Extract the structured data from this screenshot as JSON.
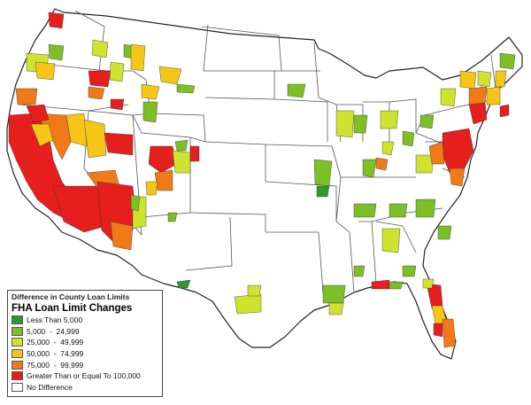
{
  "legend": {
    "heading": "Difference in County Loan Limits",
    "title": "FHA Loan Limit Changes",
    "items": [
      {
        "label": "Less Than 5,000",
        "color": "#2e9a2e"
      },
      {
        "label": "5,000  -  24,999",
        "color": "#7dbf27"
      },
      {
        "label": "25,000  -  49,999",
        "color": "#cde32f"
      },
      {
        "label": "50,000  -  74,999",
        "color": "#f5c518"
      },
      {
        "label": "75,000  -  99,999",
        "color": "#f07a18"
      },
      {
        "label": "Greater Than or Equal To 100,000",
        "color": "#e61e1e"
      },
      {
        "label": "No Difference",
        "color": "#ffffff"
      }
    ]
  }
}
